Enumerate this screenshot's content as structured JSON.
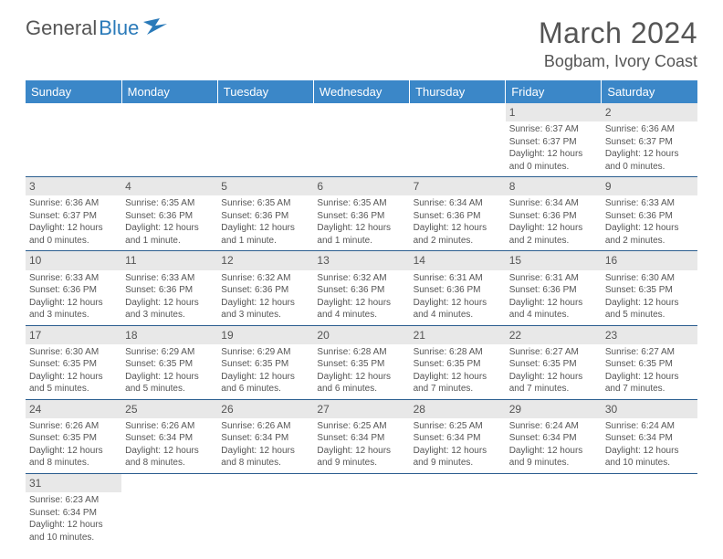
{
  "brand": {
    "part1": "General",
    "part2": "Blue"
  },
  "title": "March 2024",
  "location": "Bogbam, Ivory Coast",
  "colors": {
    "header_bg": "#3b87c8",
    "header_text": "#ffffff",
    "daynum_bg": "#e8e8e8",
    "border": "#2a5d8f",
    "text": "#555555",
    "brand_accent": "#2a7ab9"
  },
  "weekdays": [
    "Sunday",
    "Monday",
    "Tuesday",
    "Wednesday",
    "Thursday",
    "Friday",
    "Saturday"
  ],
  "weeks": [
    [
      null,
      null,
      null,
      null,
      null,
      {
        "d": "1",
        "sr": "6:37 AM",
        "ss": "6:37 PM",
        "dl": "12 hours and 0 minutes."
      },
      {
        "d": "2",
        "sr": "6:36 AM",
        "ss": "6:37 PM",
        "dl": "12 hours and 0 minutes."
      }
    ],
    [
      {
        "d": "3",
        "sr": "6:36 AM",
        "ss": "6:37 PM",
        "dl": "12 hours and 0 minutes."
      },
      {
        "d": "4",
        "sr": "6:35 AM",
        "ss": "6:36 PM",
        "dl": "12 hours and 1 minute."
      },
      {
        "d": "5",
        "sr": "6:35 AM",
        "ss": "6:36 PM",
        "dl": "12 hours and 1 minute."
      },
      {
        "d": "6",
        "sr": "6:35 AM",
        "ss": "6:36 PM",
        "dl": "12 hours and 1 minute."
      },
      {
        "d": "7",
        "sr": "6:34 AM",
        "ss": "6:36 PM",
        "dl": "12 hours and 2 minutes."
      },
      {
        "d": "8",
        "sr": "6:34 AM",
        "ss": "6:36 PM",
        "dl": "12 hours and 2 minutes."
      },
      {
        "d": "9",
        "sr": "6:33 AM",
        "ss": "6:36 PM",
        "dl": "12 hours and 2 minutes."
      }
    ],
    [
      {
        "d": "10",
        "sr": "6:33 AM",
        "ss": "6:36 PM",
        "dl": "12 hours and 3 minutes."
      },
      {
        "d": "11",
        "sr": "6:33 AM",
        "ss": "6:36 PM",
        "dl": "12 hours and 3 minutes."
      },
      {
        "d": "12",
        "sr": "6:32 AM",
        "ss": "6:36 PM",
        "dl": "12 hours and 3 minutes."
      },
      {
        "d": "13",
        "sr": "6:32 AM",
        "ss": "6:36 PM",
        "dl": "12 hours and 4 minutes."
      },
      {
        "d": "14",
        "sr": "6:31 AM",
        "ss": "6:36 PM",
        "dl": "12 hours and 4 minutes."
      },
      {
        "d": "15",
        "sr": "6:31 AM",
        "ss": "6:36 PM",
        "dl": "12 hours and 4 minutes."
      },
      {
        "d": "16",
        "sr": "6:30 AM",
        "ss": "6:35 PM",
        "dl": "12 hours and 5 minutes."
      }
    ],
    [
      {
        "d": "17",
        "sr": "6:30 AM",
        "ss": "6:35 PM",
        "dl": "12 hours and 5 minutes."
      },
      {
        "d": "18",
        "sr": "6:29 AM",
        "ss": "6:35 PM",
        "dl": "12 hours and 5 minutes."
      },
      {
        "d": "19",
        "sr": "6:29 AM",
        "ss": "6:35 PM",
        "dl": "12 hours and 6 minutes."
      },
      {
        "d": "20",
        "sr": "6:28 AM",
        "ss": "6:35 PM",
        "dl": "12 hours and 6 minutes."
      },
      {
        "d": "21",
        "sr": "6:28 AM",
        "ss": "6:35 PM",
        "dl": "12 hours and 7 minutes."
      },
      {
        "d": "22",
        "sr": "6:27 AM",
        "ss": "6:35 PM",
        "dl": "12 hours and 7 minutes."
      },
      {
        "d": "23",
        "sr": "6:27 AM",
        "ss": "6:35 PM",
        "dl": "12 hours and 7 minutes."
      }
    ],
    [
      {
        "d": "24",
        "sr": "6:26 AM",
        "ss": "6:35 PM",
        "dl": "12 hours and 8 minutes."
      },
      {
        "d": "25",
        "sr": "6:26 AM",
        "ss": "6:34 PM",
        "dl": "12 hours and 8 minutes."
      },
      {
        "d": "26",
        "sr": "6:26 AM",
        "ss": "6:34 PM",
        "dl": "12 hours and 8 minutes."
      },
      {
        "d": "27",
        "sr": "6:25 AM",
        "ss": "6:34 PM",
        "dl": "12 hours and 9 minutes."
      },
      {
        "d": "28",
        "sr": "6:25 AM",
        "ss": "6:34 PM",
        "dl": "12 hours and 9 minutes."
      },
      {
        "d": "29",
        "sr": "6:24 AM",
        "ss": "6:34 PM",
        "dl": "12 hours and 9 minutes."
      },
      {
        "d": "30",
        "sr": "6:24 AM",
        "ss": "6:34 PM",
        "dl": "12 hours and 10 minutes."
      }
    ],
    [
      {
        "d": "31",
        "sr": "6:23 AM",
        "ss": "6:34 PM",
        "dl": "12 hours and 10 minutes."
      },
      null,
      null,
      null,
      null,
      null,
      null
    ]
  ],
  "labels": {
    "sunrise": "Sunrise:",
    "sunset": "Sunset:",
    "daylight": "Daylight:"
  }
}
